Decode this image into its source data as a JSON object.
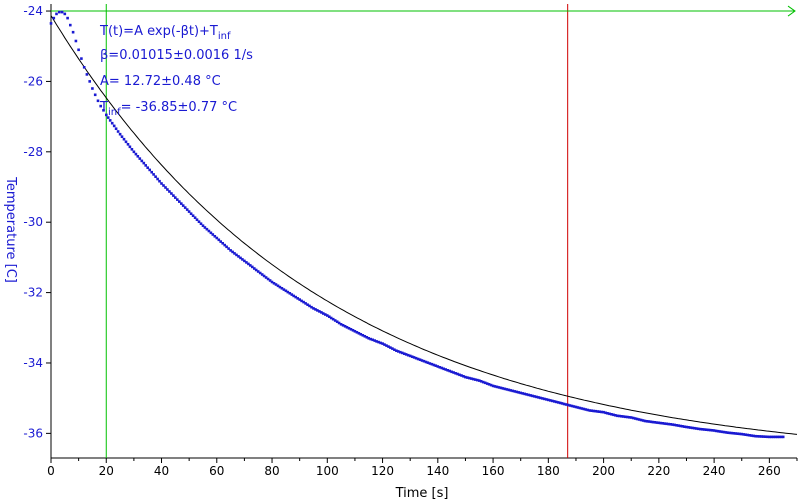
{
  "chart_data": {
    "type": "scatter",
    "xlabel": "Time [s]",
    "ylabel": "Temperature [C]",
    "xlim": [
      0,
      270
    ],
    "ylim": [
      -36.7,
      -23.8
    ],
    "xticks": [
      0,
      20,
      40,
      60,
      80,
      100,
      120,
      140,
      160,
      180,
      200,
      220,
      240,
      260
    ],
    "yticks": [
      -24,
      -26,
      -28,
      -30,
      -32,
      -34,
      -36
    ],
    "grid": false,
    "annotations": {
      "formula_main": "T(t)=A exp(-βt)+T",
      "formula_sub": "inf",
      "beta": "β=0.01015±0.0016 1/s",
      "amplitude": "A= 12.72±0.48 °C",
      "tinf_main": "T",
      "tinf_sub": "inf",
      "tinf_rest": "= -36.85±0.77 °C"
    },
    "fit": {
      "A": 12.72,
      "beta": 0.01015,
      "T_inf": -36.85,
      "color": "#000000"
    },
    "series": [
      {
        "color": "#1a1ad2",
        "x": [
          0,
          1,
          2,
          3,
          4,
          5,
          6,
          7,
          8,
          9,
          10,
          11,
          12,
          13,
          14,
          15,
          16,
          17,
          18,
          19,
          20,
          25,
          30,
          35,
          40,
          45,
          50,
          55,
          60,
          65,
          70,
          75,
          80,
          85,
          90,
          95,
          100,
          105,
          110,
          115,
          120,
          125,
          130,
          135,
          140,
          145,
          150,
          155,
          160,
          165,
          170,
          175,
          180,
          185,
          190,
          195,
          200,
          205,
          210,
          215,
          220,
          225,
          230,
          235,
          240,
          245,
          250,
          255,
          260,
          265
        ],
        "y": [
          -24.35,
          -24.2,
          -24.08,
          -24.03,
          -24.03,
          -24.08,
          -24.2,
          -24.4,
          -24.6,
          -24.85,
          -25.1,
          -25.35,
          -25.6,
          -25.8,
          -26.0,
          -26.2,
          -26.38,
          -26.55,
          -26.7,
          -26.82,
          -26.95,
          -27.5,
          -28.0,
          -28.45,
          -28.9,
          -29.3,
          -29.7,
          -30.1,
          -30.45,
          -30.8,
          -31.1,
          -31.4,
          -31.7,
          -31.95,
          -32.2,
          -32.45,
          -32.65,
          -32.9,
          -33.1,
          -33.3,
          -33.45,
          -33.65,
          -33.8,
          -33.95,
          -34.1,
          -34.25,
          -34.4,
          -34.5,
          -34.65,
          -34.75,
          -34.85,
          -34.95,
          -35.05,
          -35.15,
          -35.25,
          -35.35,
          -35.4,
          -35.5,
          -35.55,
          -35.65,
          -35.7,
          -35.75,
          -35.82,
          -35.88,
          -35.92,
          -35.98,
          -36.02,
          -36.08,
          -36.1,
          -36.1
        ]
      }
    ],
    "cursors": [
      {
        "orientation": "vertical",
        "x": 20,
        "color": "#00c000"
      },
      {
        "orientation": "vertical",
        "x": 187,
        "color": "#d00000"
      },
      {
        "orientation": "horizontal",
        "y": -24,
        "color": "#00c000"
      }
    ]
  }
}
